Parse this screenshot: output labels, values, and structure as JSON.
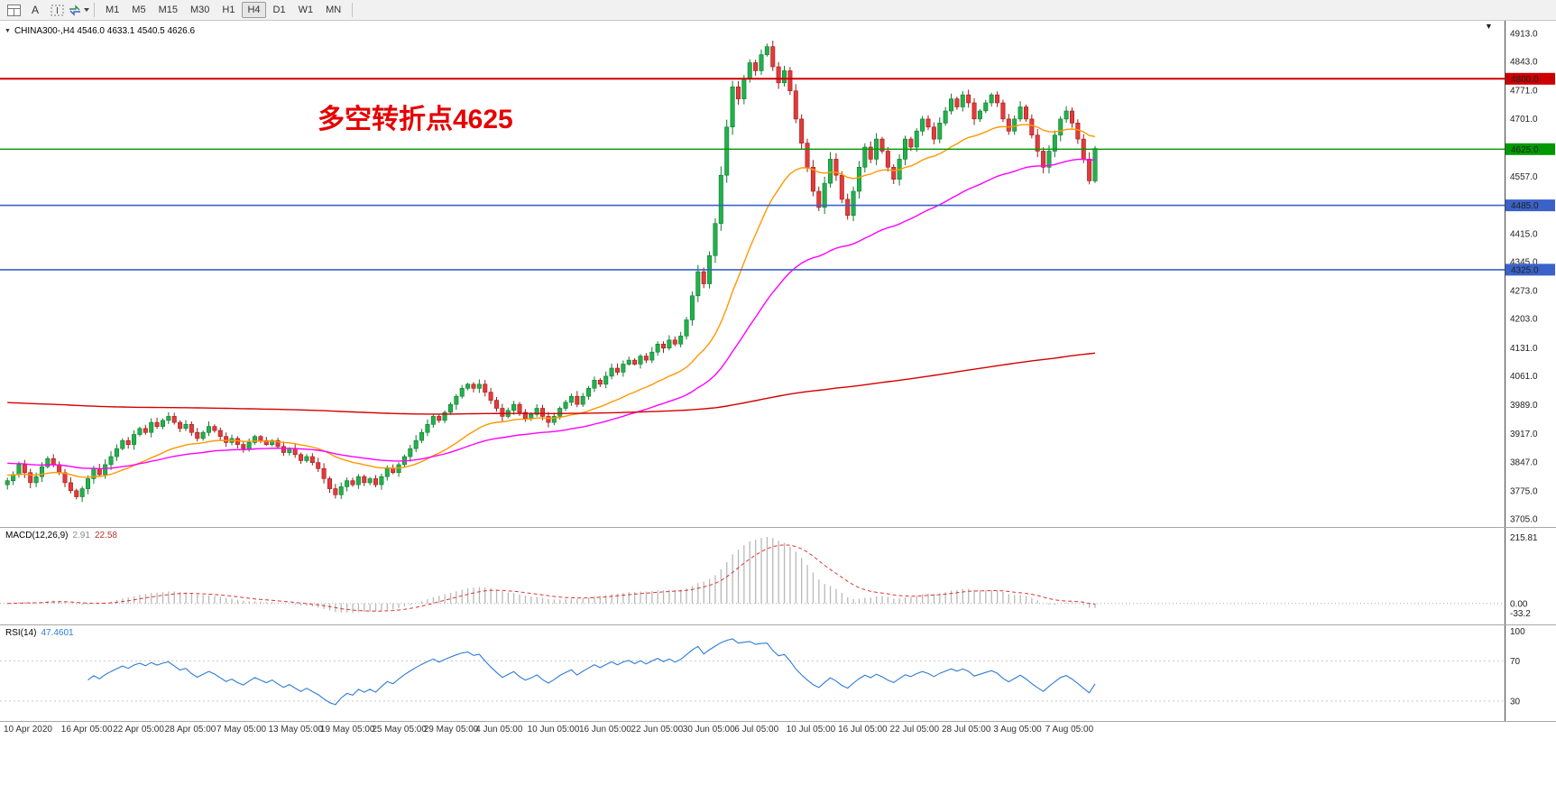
{
  "toolbar": {
    "text_tool_glyph": "A",
    "timeframes": [
      "M1",
      "M5",
      "M15",
      "M30",
      "H1",
      "H4",
      "D1",
      "W1",
      "MN"
    ],
    "selected_timeframe": "H4"
  },
  "icons": {
    "collapse_icon": "▼",
    "shift_marker_icon": "▼"
  },
  "chart": {
    "symbol_line": "CHINA300-,H4  4546.0 4633.1 4540.5 4626.6",
    "annotation": "多空转折点4625",
    "annotation_color": "#e60000"
  },
  "chart_data": {
    "type": "candlestick",
    "symbol": "CHINA300-",
    "timeframe": "H4",
    "current_bar": {
      "open": 4546.0,
      "high": 4633.1,
      "low": 4540.5,
      "close": 4626.6
    },
    "price_range": [
      3705.0,
      4913.0
    ],
    "closes": [
      3800,
      3815,
      3840,
      3820,
      3795,
      3810,
      3835,
      3855,
      3840,
      3820,
      3795,
      3775,
      3760,
      3780,
      3805,
      3830,
      3815,
      3840,
      3860,
      3880,
      3900,
      3890,
      3915,
      3930,
      3920,
      3945,
      3935,
      3950,
      3960,
      3945,
      3930,
      3940,
      3920,
      3905,
      3920,
      3935,
      3925,
      3910,
      3895,
      3905,
      3890,
      3880,
      3895,
      3910,
      3900,
      3890,
      3900,
      3885,
      3870,
      3880,
      3865,
      3850,
      3860,
      3845,
      3830,
      3805,
      3780,
      3765,
      3785,
      3800,
      3790,
      3810,
      3795,
      3805,
      3790,
      3810,
      3830,
      3820,
      3840,
      3860,
      3880,
      3900,
      3920,
      3940,
      3960,
      3950,
      3970,
      3990,
      4010,
      4030,
      4040,
      4030,
      4040,
      4020,
      4000,
      3980,
      3960,
      3975,
      3990,
      3970,
      3955,
      3965,
      3980,
      3960,
      3945,
      3960,
      3980,
      3995,
      4010,
      3990,
      4010,
      4030,
      4050,
      4040,
      4060,
      4080,
      4070,
      4090,
      4100,
      4090,
      4110,
      4100,
      4120,
      4140,
      4130,
      4150,
      4140,
      4160,
      4200,
      4260,
      4320,
      4290,
      4360,
      4440,
      4560,
      4680,
      4780,
      4750,
      4800,
      4840,
      4820,
      4860,
      4880,
      4830,
      4790,
      4820,
      4770,
      4700,
      4640,
      4580,
      4520,
      4480,
      4540,
      4600,
      4560,
      4500,
      4460,
      4520,
      4580,
      4630,
      4600,
      4650,
      4620,
      4580,
      4550,
      4600,
      4650,
      4630,
      4670,
      4700,
      4680,
      4650,
      4690,
      4720,
      4750,
      4730,
      4760,
      4740,
      4700,
      4720,
      4740,
      4760,
      4740,
      4700,
      4670,
      4700,
      4730,
      4700,
      4660,
      4620,
      4580,
      4620,
      4660,
      4700,
      4720,
      4690,
      4650,
      4600,
      4546,
      4626.6
    ],
    "y_ticks": [
      "4913.0",
      "4843.0",
      "4771.0",
      "4701.0",
      "4557.0",
      "4415.0",
      "4345.0",
      "4273.0",
      "4203.0",
      "4131.0",
      "4061.0",
      "3989.0",
      "3917.0",
      "3847.0",
      "3775.0",
      "3705.0"
    ],
    "x_labels": [
      "10 Apr 2020",
      "16 Apr 05:00",
      "22 Apr 05:00",
      "28 Apr 05:00",
      "7 May 05:00",
      "13 May 05:00",
      "19 May 05:00",
      "25 May 05:00",
      "29 May 05:00",
      "4 Jun 05:00",
      "10 Jun 05:00",
      "16 Jun 05:00",
      "22 Jun 05:00",
      "30 Jun 05:00",
      "6 Jul 05:00",
      "10 Jul 05:00",
      "16 Jul 05:00",
      "22 Jul 05:00",
      "28 Jul 05:00",
      "3 Aug 05:00",
      "7 Aug 05:00"
    ],
    "hlines": [
      {
        "value": 4800.0,
        "label": "4800.0",
        "color": "#cc0000",
        "width": 2
      },
      {
        "value": 4625.0,
        "label": "4625.0",
        "color": "#009900",
        "width": 1.4
      },
      {
        "value": 4485.0,
        "label": "4485.0",
        "color": "#3a62c8",
        "width": 1.6
      },
      {
        "value": 4325.0,
        "label": "4325.0",
        "color": "#3a62c8",
        "width": 1.6
      }
    ],
    "moving_averages": [
      {
        "name": "fast",
        "color": "#ff9800",
        "period": 26,
        "seed": 3815
      },
      {
        "name": "medium",
        "color": "#ff00ff",
        "period": 60,
        "seed": 3845
      },
      {
        "name": "slow",
        "color": "#d40000",
        "period": 600,
        "seed": 3995
      }
    ],
    "macd": {
      "name": "MACD(12,26,9)",
      "value_main": "2.91",
      "value_signal": "22.58",
      "axis": [
        "215.81",
        "0.00",
        "-33.2"
      ],
      "fast": 12,
      "slow": 26,
      "signal": 9
    },
    "rsi": {
      "name": "RSI(14)",
      "value": "47.4601",
      "axis": [
        "100",
        "70",
        "30"
      ],
      "period": 14,
      "levels": [
        70,
        30
      ]
    }
  }
}
